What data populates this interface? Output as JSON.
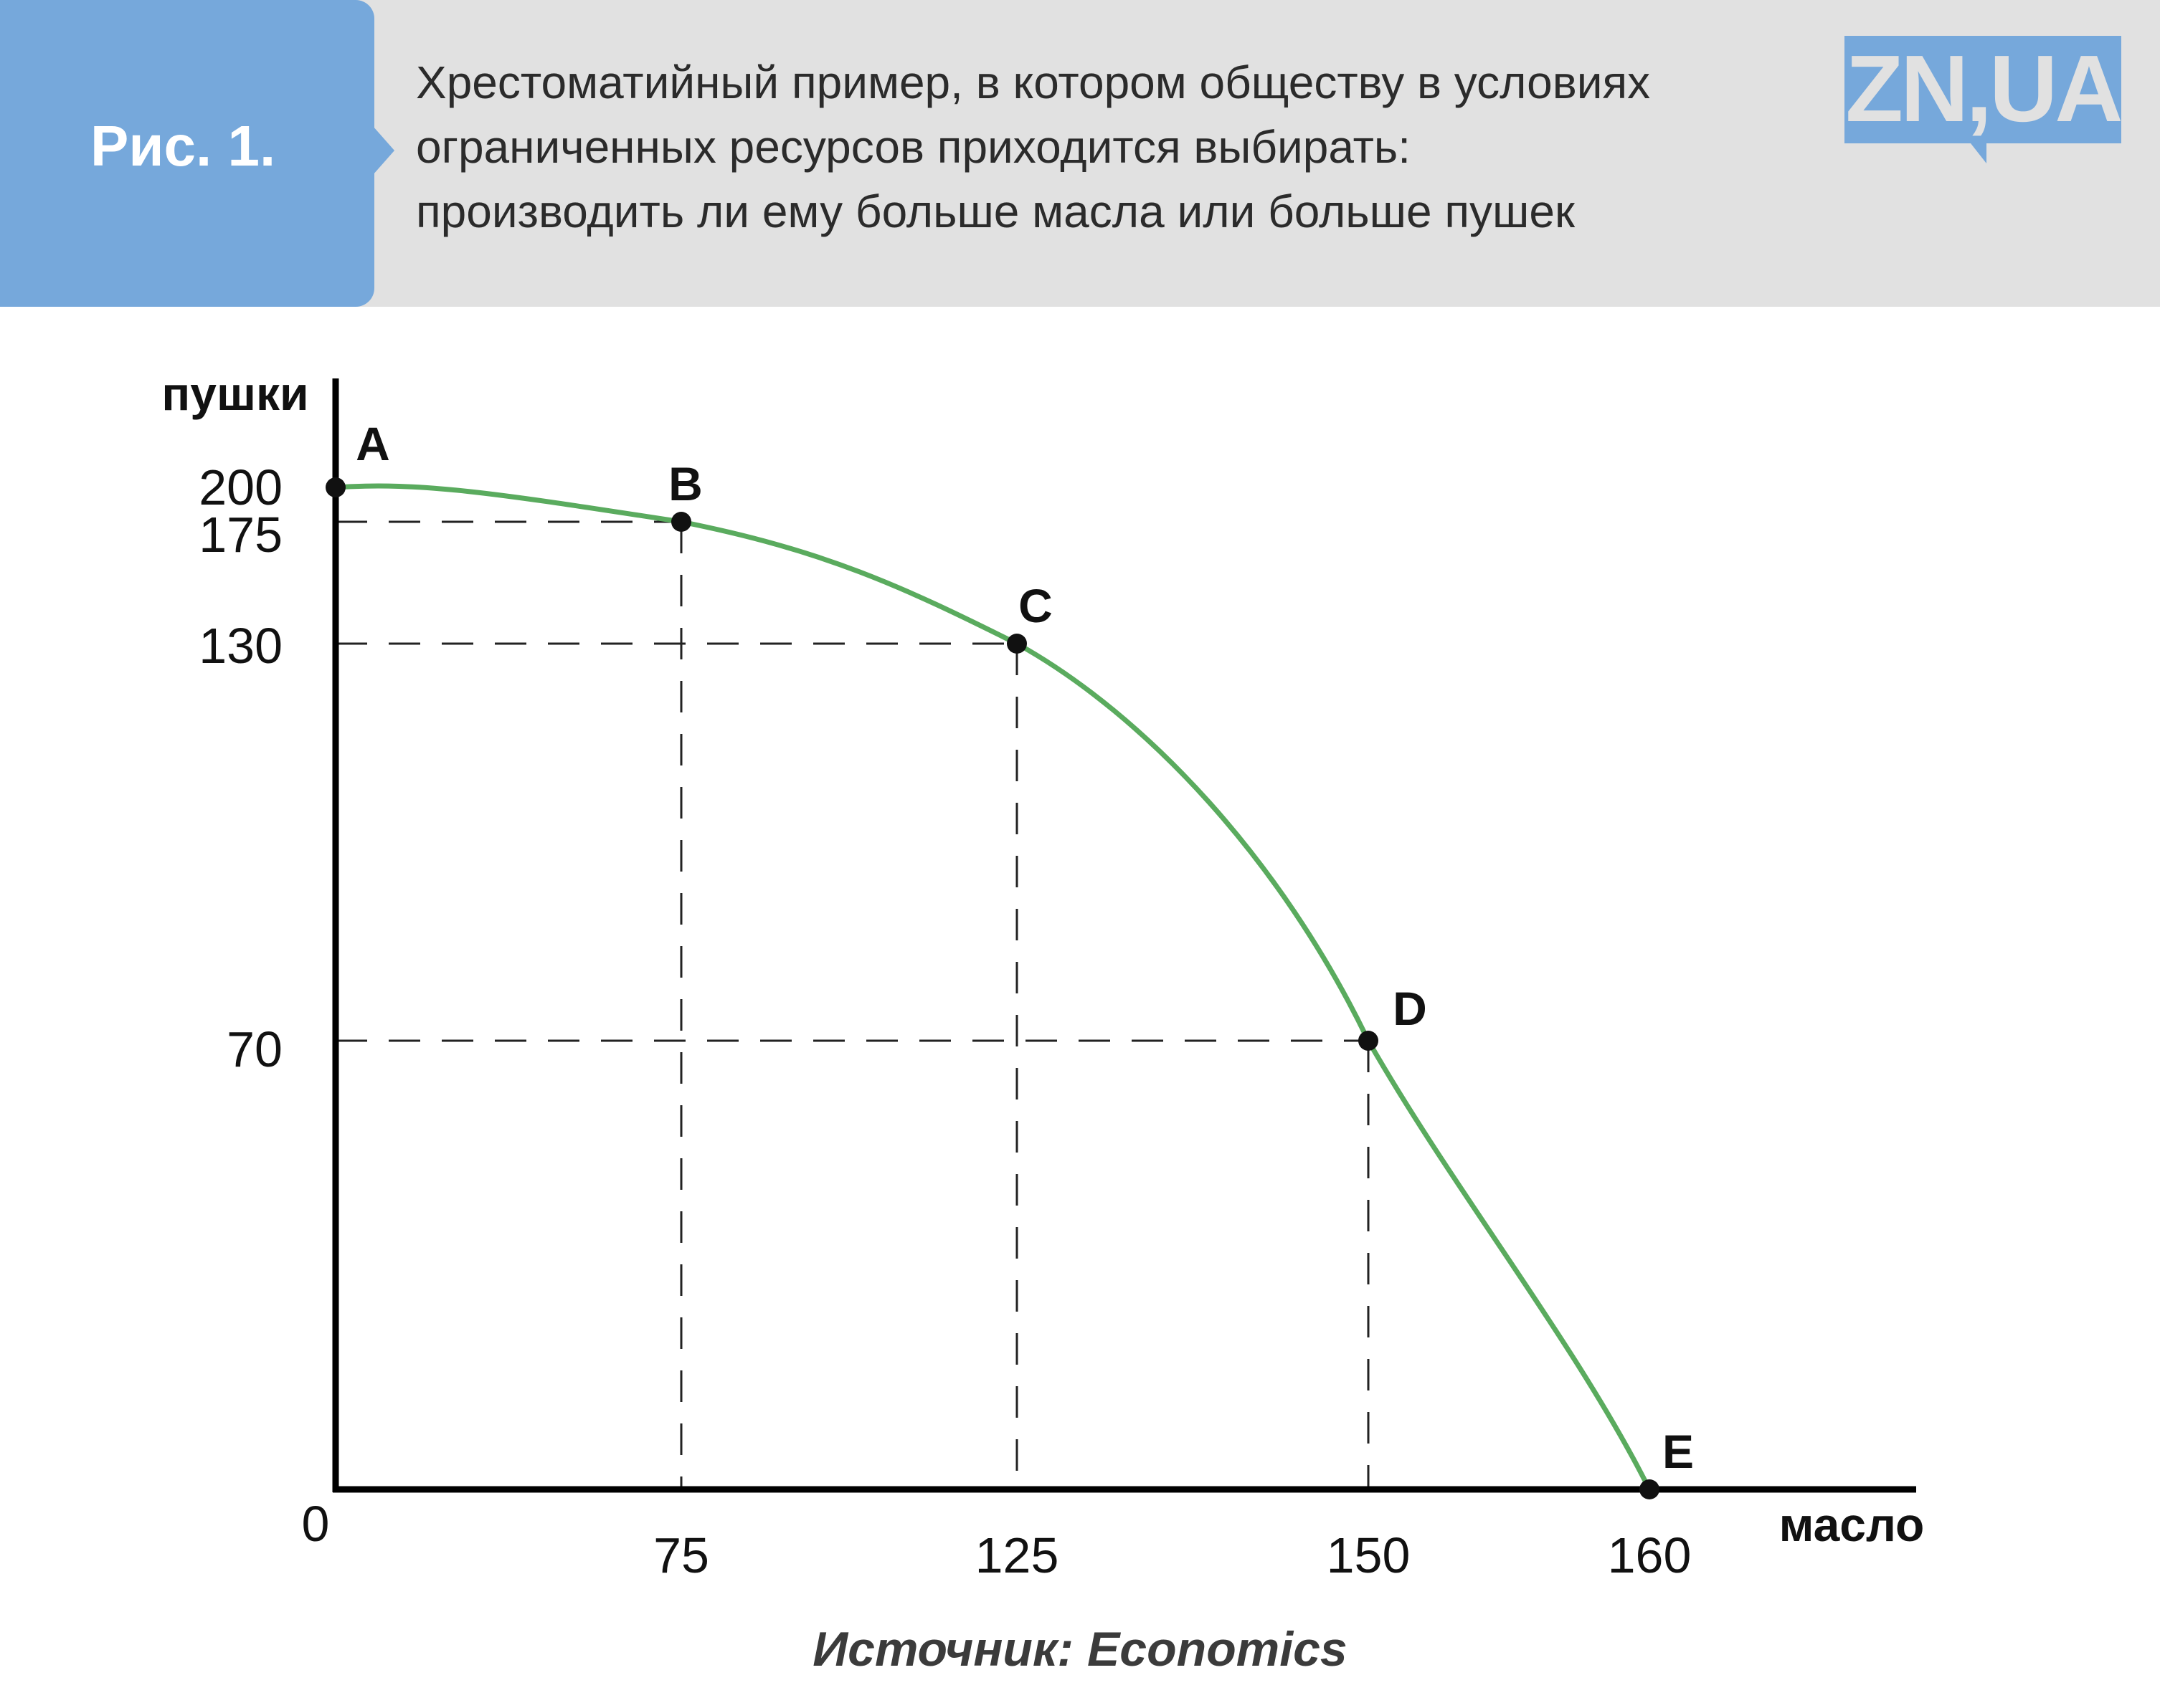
{
  "header": {
    "fig_label": "Рис. 1.",
    "caption_lines": [
      "Хрестоматийный пример, в котором обществу в условиях",
      "ограниченных ресурсов приходится выбирать:",
      "производить ли ему больше масла или больше пушек"
    ],
    "logo_text": "ZN,UA"
  },
  "colors": {
    "accent": "#76a8db",
    "header_bg": "#e1e1e1",
    "curve": "#5aab5e",
    "axis": "#000000"
  },
  "chart_data": {
    "type": "line",
    "title": "",
    "xlabel": "масло",
    "ylabel": "пушки",
    "origin_label": "0",
    "xlim": [
      0,
      180
    ],
    "ylim": [
      0,
      220
    ],
    "x_ticks": [
      {
        "value": 75,
        "label": "75"
      },
      {
        "value": 125,
        "label": "125"
      },
      {
        "value": 150,
        "label": "150"
      },
      {
        "value": 160,
        "label": "160"
      }
    ],
    "y_ticks": [
      {
        "value": 200,
        "label": "200"
      },
      {
        "value": 175,
        "label": "175"
      },
      {
        "value": 130,
        "label": "130"
      },
      {
        "value": 70,
        "label": "70"
      }
    ],
    "points": [
      {
        "label": "A",
        "x": 0,
        "y": 200
      },
      {
        "label": "B",
        "x": 75,
        "y": 175
      },
      {
        "label": "C",
        "x": 125,
        "y": 130
      },
      {
        "label": "D",
        "x": 150,
        "y": 70
      },
      {
        "label": "E",
        "x": 160,
        "y": 0
      }
    ],
    "guides": true,
    "grid": false
  },
  "source": "Источник: Economics"
}
